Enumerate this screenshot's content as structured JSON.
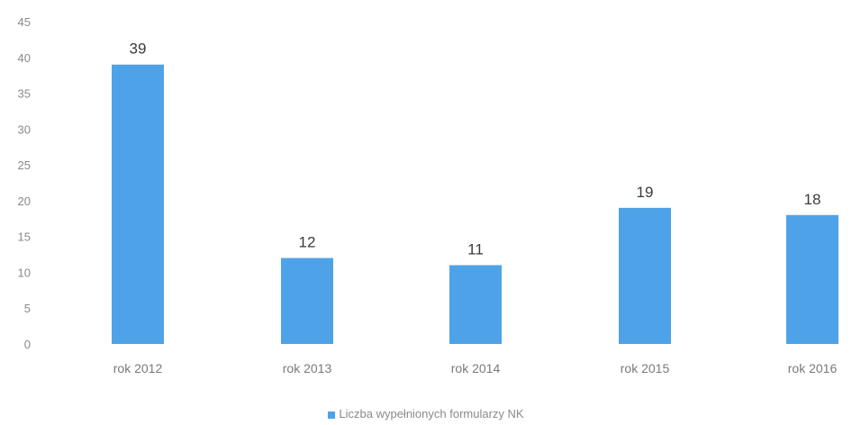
{
  "chart_data": {
    "type": "bar",
    "categories": [
      "rok 2012",
      "rok 2013",
      "rok 2014",
      "rok 2015",
      "rok 2016"
    ],
    "series": [
      {
        "name": "Liczba wypełnionych formularzy NK",
        "values": [
          39,
          12,
          11,
          19,
          18
        ]
      }
    ],
    "ylim": [
      0,
      45
    ],
    "yticks": [
      0,
      5,
      10,
      15,
      20,
      25,
      30,
      35,
      40,
      45
    ],
    "grid": false,
    "legend_position": "bottom",
    "bar_color": "#4ea3e8"
  }
}
